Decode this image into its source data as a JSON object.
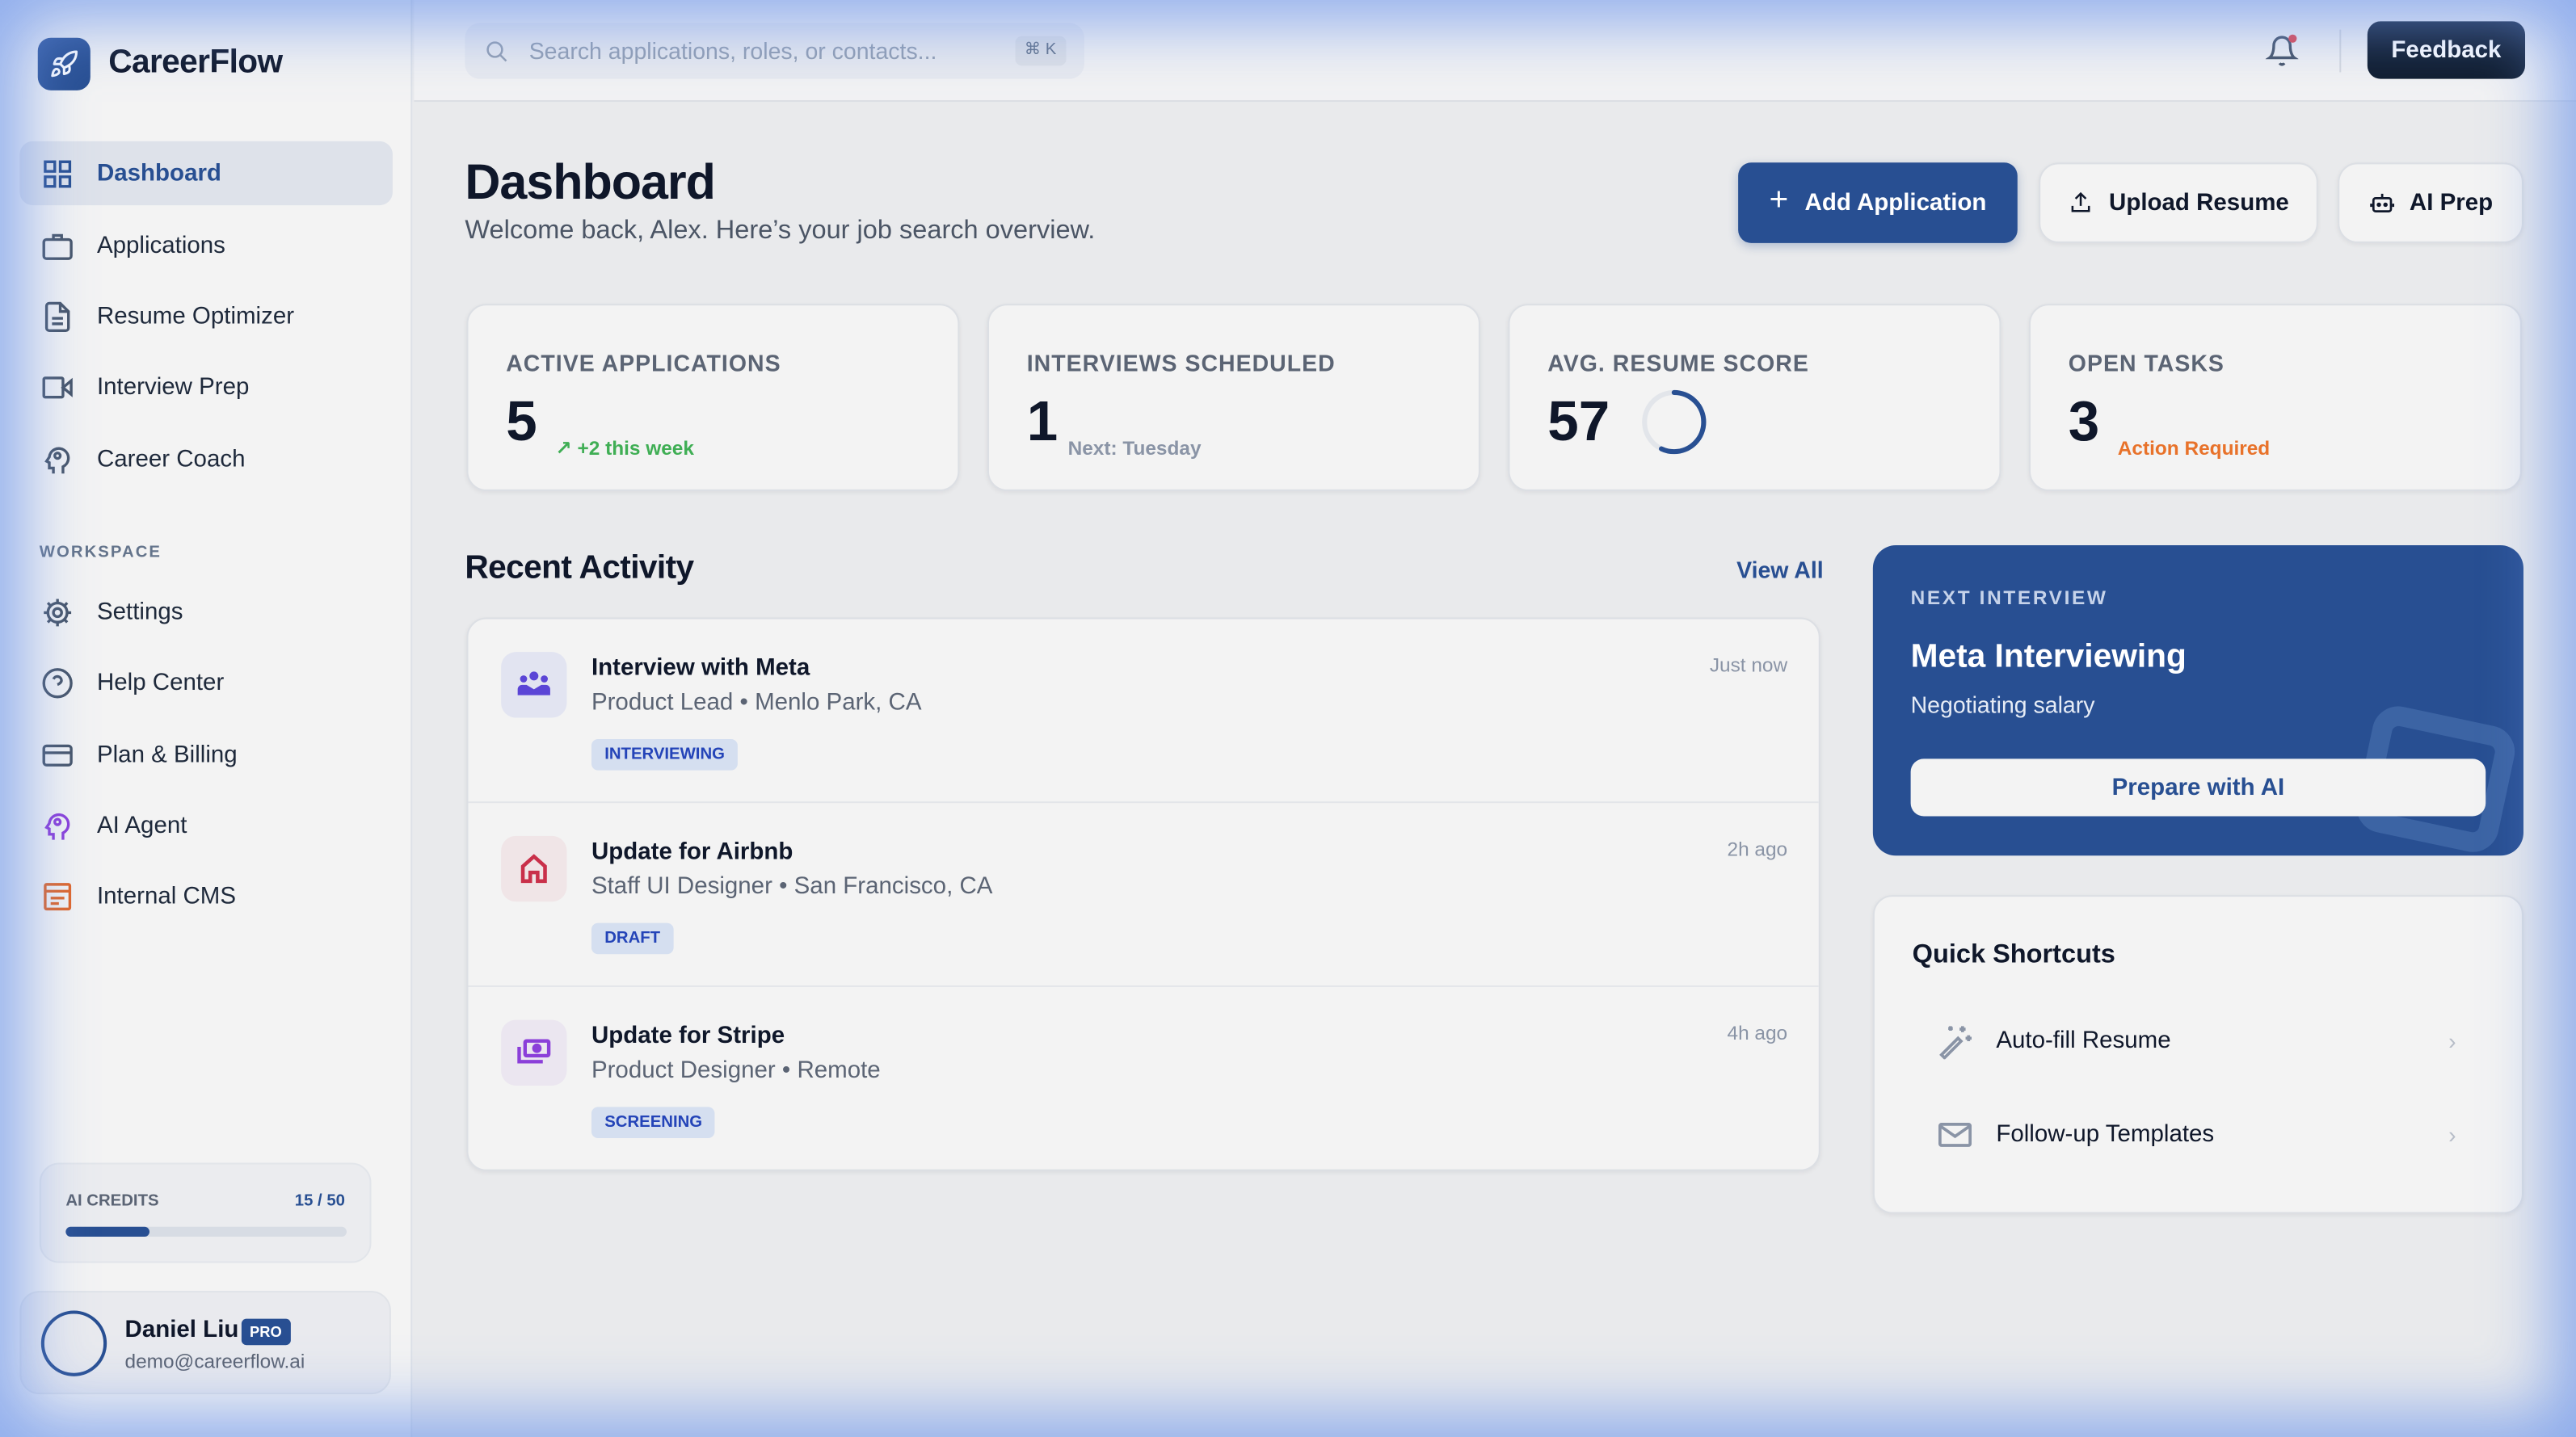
{
  "brand": {
    "name": "CareerFlow",
    "icon": "rocket-icon"
  },
  "sidebar": {
    "items": [
      {
        "label": "Dashboard",
        "icon": "grid-icon",
        "active": true
      },
      {
        "label": "Applications",
        "icon": "briefcase-icon"
      },
      {
        "label": "Resume Optimizer",
        "icon": "document-icon"
      },
      {
        "label": "Interview Prep",
        "icon": "video-icon"
      },
      {
        "label": "Career Coach",
        "icon": "head-gear-icon"
      }
    ],
    "workspace_label": "WORKSPACE",
    "workspace_items": [
      {
        "label": "Settings",
        "icon": "gear-icon"
      },
      {
        "label": "Help Center",
        "icon": "help-icon"
      },
      {
        "label": "Plan & Billing",
        "icon": "credit-card-icon"
      },
      {
        "label": "AI Agent",
        "icon": "ai-head-icon"
      },
      {
        "label": "Internal CMS",
        "icon": "cms-icon"
      }
    ],
    "credits": {
      "label": "AI CREDITS",
      "value": "15 / 50",
      "used": 15,
      "total": 50
    },
    "user": {
      "name": "Daniel Liu",
      "badge": "PRO",
      "email": "demo@careerflow.ai"
    }
  },
  "topbar": {
    "search_placeholder": "Search applications, roles, or contacts...",
    "shortcut": "⌘ K",
    "feedback_label": "Feedback"
  },
  "header": {
    "title": "Dashboard",
    "subtitle": "Welcome back, Alex. Here’s your job search overview.",
    "add_label": "Add Application",
    "upload_label": "Upload Resume",
    "prep_label": "AI Prep"
  },
  "stats": [
    {
      "label": "ACTIVE APPLICATIONS",
      "value": "5",
      "sub": "+2 this week",
      "sub_color": "#3fae54"
    },
    {
      "label": "INTERVIEWS SCHEDULED",
      "value": "1",
      "sub": "Next: Tuesday",
      "sub_color": "#8a94a6"
    },
    {
      "label": "AVG. RESUME SCORE",
      "value": "57",
      "score_percent": 57
    },
    {
      "label": "OPEN TASKS",
      "value": "3",
      "sub": "Action Required",
      "sub_color": "#e8722a"
    }
  ],
  "activity": {
    "title": "Recent Activity",
    "view_all": "View All",
    "items": [
      {
        "title": "Interview with Meta",
        "role": "Product Lead",
        "location": "Menlo Park, CA",
        "status": "INTERVIEWING",
        "time": "Just now",
        "icon": "users-icon"
      },
      {
        "title": "Update for Airbnb",
        "role": "Staff UI Designer",
        "location": "San Francisco, CA",
        "status": "DRAFT",
        "time": "2h ago",
        "icon": "home-icon"
      },
      {
        "title": "Update for Stripe",
        "role": "Product Designer",
        "location": "Remote",
        "status": "SCREENING",
        "time": "4h ago",
        "icon": "money-icon"
      }
    ]
  },
  "next_interview": {
    "label": "NEXT INTERVIEW",
    "title": "Meta Interviewing",
    "subtitle": "Negotiating salary",
    "button": "Prepare with AI"
  },
  "shortcuts": {
    "title": "Quick Shortcuts",
    "items": [
      {
        "label": "Auto-fill Resume",
        "icon": "magic-wand-icon"
      },
      {
        "label": "Follow-up Templates",
        "icon": "mail-icon"
      }
    ]
  },
  "colors": {
    "primary": "#284f92",
    "sidebar_bg": "#f3f3f3",
    "main_bg": "#e9eaec"
  }
}
